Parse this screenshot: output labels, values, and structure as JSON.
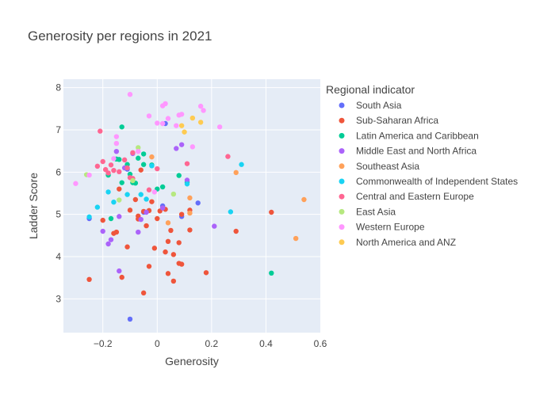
{
  "chart_data": {
    "type": "scatter",
    "title": "Generosity per regions in 2021",
    "xlabel": "Generosity",
    "ylabel": "Ladder Score",
    "xlim": [
      -0.345,
      0.6
    ],
    "ylim": [
      2.2,
      8.2
    ],
    "xticks": [
      "−0.2",
      "0",
      "0.2",
      "0.4",
      "0.6"
    ],
    "xtick_values": [
      -0.2,
      0,
      0.2,
      0.4,
      0.6
    ],
    "yticks": [
      "3",
      "4",
      "5",
      "6",
      "7",
      "8"
    ],
    "ytick_values": [
      3,
      4,
      5,
      6,
      7,
      8
    ],
    "grid": true,
    "legend_title": "Regional indicator",
    "legend_position": "right",
    "series": [
      {
        "name": "South Asia",
        "color": "#636efa",
        "points": [
          [
            0.03,
            7.15
          ],
          [
            0.15,
            5.27
          ],
          [
            0.02,
            5.2
          ],
          [
            -0.11,
            6.07
          ],
          [
            0.09,
            4.95
          ],
          [
            -0.05,
            5.05
          ],
          [
            -0.25,
            4.9
          ],
          [
            -0.1,
            2.52
          ]
        ]
      },
      {
        "name": "Sub-Saharan Africa",
        "color": "#EF553B",
        "points": [
          [
            -0.2,
            4.86
          ],
          [
            -0.16,
            4.55
          ],
          [
            -0.15,
            4.58
          ],
          [
            -0.14,
            5.6
          ],
          [
            -0.13,
            3.51
          ],
          [
            -0.11,
            4.23
          ],
          [
            -0.1,
            5.1
          ],
          [
            -0.08,
            5.35
          ],
          [
            -0.07,
            4.96
          ],
          [
            -0.07,
            4.89
          ],
          [
            -0.06,
            6.05
          ],
          [
            -0.05,
            5.07
          ],
          [
            -0.05,
            3.14
          ],
          [
            -0.04,
            4.73
          ],
          [
            -0.03,
            5.09
          ],
          [
            -0.03,
            3.77
          ],
          [
            -0.02,
            5.3
          ],
          [
            -0.01,
            4.2
          ],
          [
            0.0,
            4.9
          ],
          [
            0.01,
            5.08
          ],
          [
            0.02,
            5.15
          ],
          [
            0.03,
            5.12
          ],
          [
            0.03,
            4.11
          ],
          [
            0.04,
            4.36
          ],
          [
            0.04,
            3.6
          ],
          [
            0.05,
            4.62
          ],
          [
            0.06,
            4.05
          ],
          [
            0.06,
            3.42
          ],
          [
            0.08,
            4.33
          ],
          [
            0.08,
            3.84
          ],
          [
            0.09,
            3.82
          ],
          [
            0.09,
            5.0
          ],
          [
            0.12,
            4.63
          ],
          [
            0.12,
            5.1
          ],
          [
            0.18,
            3.62
          ],
          [
            0.29,
            4.6
          ],
          [
            0.42,
            5.05
          ],
          [
            -0.25,
            3.46
          ]
        ]
      },
      {
        "name": "Latin America and Caribbean",
        "color": "#00cc96",
        "points": [
          [
            -0.18,
            5.93
          ],
          [
            -0.17,
            4.9
          ],
          [
            -0.15,
            6.31
          ],
          [
            -0.14,
            6.3
          ],
          [
            -0.13,
            7.07
          ],
          [
            -0.13,
            5.75
          ],
          [
            -0.11,
            6.18
          ],
          [
            -0.1,
            5.95
          ],
          [
            -0.09,
            5.75
          ],
          [
            -0.08,
            5.74
          ],
          [
            -0.07,
            6.33
          ],
          [
            -0.05,
            6.43
          ],
          [
            -0.05,
            6.18
          ],
          [
            -0.02,
            6.17
          ],
          [
            0.0,
            5.6
          ],
          [
            0.02,
            5.65
          ],
          [
            0.08,
            5.92
          ],
          [
            0.11,
            5.76
          ],
          [
            0.42,
            3.61
          ]
        ]
      },
      {
        "name": "Middle East and North Africa",
        "color": "#ab63fa",
        "points": [
          [
            -0.2,
            4.6
          ],
          [
            -0.18,
            4.3
          ],
          [
            -0.17,
            4.4
          ],
          [
            -0.15,
            6.49
          ],
          [
            -0.14,
            4.95
          ],
          [
            -0.14,
            3.66
          ],
          [
            -0.12,
            6.1
          ],
          [
            -0.09,
            6.44
          ],
          [
            -0.07,
            4.58
          ],
          [
            -0.06,
            4.88
          ],
          [
            -0.04,
            5.05
          ],
          [
            0.02,
            5.15
          ],
          [
            0.07,
            6.56
          ],
          [
            0.09,
            6.65
          ],
          [
            0.11,
            5.81
          ],
          [
            0.21,
            4.72
          ]
        ]
      },
      {
        "name": "Southeast Asia",
        "color": "#FFA15A",
        "points": [
          [
            0.29,
            5.99
          ],
          [
            0.51,
            4.43
          ],
          [
            0.54,
            5.35
          ],
          [
            0.04,
            4.8
          ],
          [
            0.12,
            5.39
          ],
          [
            -0.02,
            6.36
          ],
          [
            0.12,
            5.03
          ]
        ]
      },
      {
        "name": "Commonwealth of Independent States",
        "color": "#19d3f3",
        "points": [
          [
            -0.25,
            4.94
          ],
          [
            -0.22,
            5.17
          ],
          [
            -0.18,
            5.53
          ],
          [
            -0.16,
            5.29
          ],
          [
            -0.11,
            5.47
          ],
          [
            -0.06,
            5.47
          ],
          [
            -0.04,
            5.36
          ],
          [
            -0.02,
            6.15
          ],
          [
            0.11,
            5.72
          ],
          [
            0.27,
            5.06
          ],
          [
            0.31,
            6.18
          ]
        ]
      },
      {
        "name": "Central and Eastern Europe",
        "color": "#FF6692",
        "points": [
          [
            -0.21,
            6.97
          ],
          [
            -0.2,
            6.25
          ],
          [
            -0.19,
            6.06
          ],
          [
            -0.18,
            5.98
          ],
          [
            -0.17,
            6.17
          ],
          [
            -0.16,
            6.04
          ],
          [
            -0.14,
            6.01
          ],
          [
            -0.12,
            6.29
          ],
          [
            -0.11,
            6.1
          ],
          [
            -0.1,
            5.87
          ],
          [
            -0.09,
            5.85
          ],
          [
            -0.03,
            5.58
          ],
          [
            0.0,
            6.08
          ],
          [
            0.11,
            6.2
          ],
          [
            0.26,
            6.37
          ],
          [
            -0.09,
            6.46
          ],
          [
            -0.22,
            6.14
          ]
        ]
      },
      {
        "name": "East Asia",
        "color": "#B6E880",
        "points": [
          [
            -0.26,
            5.94
          ],
          [
            -0.14,
            5.34
          ],
          [
            -0.07,
            6.58
          ],
          [
            0.06,
            5.48
          ],
          [
            -0.09,
            5.8
          ]
        ]
      },
      {
        "name": "Western Europe",
        "color": "#FF97FF",
        "points": [
          [
            -0.3,
            5.73
          ],
          [
            -0.25,
            5.93
          ],
          [
            -0.16,
            6.32
          ],
          [
            -0.15,
            6.84
          ],
          [
            -0.15,
            6.68
          ],
          [
            -0.1,
            7.84
          ],
          [
            -0.07,
            6.49
          ],
          [
            -0.03,
            7.33
          ],
          [
            0.0,
            7.16
          ],
          [
            0.02,
            7.15
          ],
          [
            0.02,
            7.57
          ],
          [
            0.03,
            7.62
          ],
          [
            0.04,
            7.27
          ],
          [
            0.07,
            7.1
          ],
          [
            0.08,
            7.35
          ],
          [
            0.09,
            7.37
          ],
          [
            0.13,
            6.6
          ],
          [
            0.16,
            7.56
          ],
          [
            0.17,
            7.46
          ],
          [
            0.23,
            7.07
          ],
          [
            -0.01,
            5.53
          ]
        ]
      },
      {
        "name": "North America and ANZ",
        "color": "#FECB52",
        "points": [
          [
            0.09,
            7.1
          ],
          [
            0.1,
            6.95
          ],
          [
            0.13,
            7.28
          ],
          [
            0.16,
            7.18
          ]
        ]
      }
    ]
  }
}
